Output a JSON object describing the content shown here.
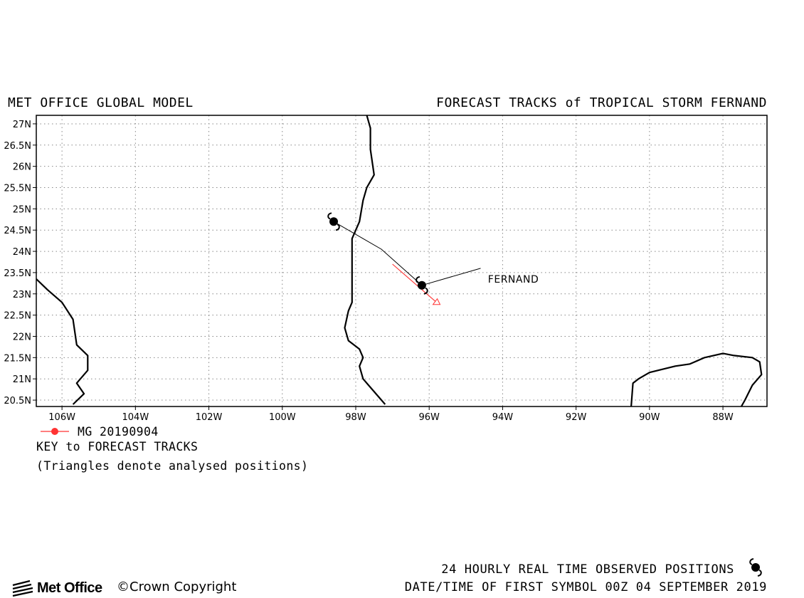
{
  "header": {
    "model_title": "MET OFFICE GLOBAL MODEL",
    "forecast_title": "FORECAST TRACKS of TROPICAL STORM FERNAND"
  },
  "map": {
    "lon_range": [
      -106.7,
      -86.8
    ],
    "lat_range": [
      20.35,
      27.2
    ],
    "lon_ticks": [
      -106,
      -104,
      -102,
      -100,
      -98,
      -96,
      -94,
      -92,
      -90,
      -88
    ],
    "lon_tick_labels": [
      "106W",
      "104W",
      "102W",
      "100W",
      "98W",
      "96W",
      "94W",
      "92W",
      "90W",
      "88W"
    ],
    "lat_ticks": [
      20.5,
      21,
      21.5,
      22,
      22.5,
      23,
      23.5,
      24,
      24.5,
      25,
      25.5,
      26,
      26.5,
      27
    ],
    "lat_tick_labels": [
      "20.5N",
      "21N",
      "21.5N",
      "22N",
      "22.5N",
      "23N",
      "23.5N",
      "24N",
      "24.5N",
      "25N",
      "25.5N",
      "26N",
      "26.5N",
      "27N"
    ],
    "grid": "dotted",
    "storm_name": "FERNAND",
    "storm_label_position": [
      -94.4,
      23.35
    ],
    "observed_positions": [
      {
        "lon": -96.2,
        "lat": 23.2
      },
      {
        "lon": -98.6,
        "lat": 24.7
      }
    ],
    "observed_track": [
      [
        -96.2,
        23.2
      ],
      [
        -97.3,
        24.05
      ],
      [
        -97.8,
        24.3
      ],
      [
        -98.6,
        24.7
      ]
    ],
    "label_leader": [
      [
        -96.2,
        23.2
      ],
      [
        -94.6,
        23.6
      ]
    ],
    "forecast_track": {
      "name": "MG 20190904",
      "color": "#ff3333",
      "points": [
        [
          -97.0,
          23.7
        ],
        [
          -95.8,
          22.8
        ]
      ],
      "analysed_triangle": {
        "lon": -95.8,
        "lat": 22.8
      }
    },
    "coastlines": [
      [
        [
          -97.7,
          27.2
        ],
        [
          -97.6,
          26.9
        ],
        [
          -97.6,
          26.4
        ],
        [
          -97.5,
          25.8
        ],
        [
          -97.7,
          25.5
        ],
        [
          -97.8,
          25.2
        ],
        [
          -97.9,
          24.7
        ],
        [
          -98.1,
          24.3
        ],
        [
          -98.1,
          23.5
        ],
        [
          -98.1,
          22.8
        ],
        [
          -98.2,
          22.6
        ],
        [
          -98.3,
          22.2
        ],
        [
          -98.2,
          21.9
        ],
        [
          -97.9,
          21.7
        ],
        [
          -97.8,
          21.5
        ],
        [
          -97.9,
          21.3
        ],
        [
          -97.8,
          21.0
        ],
        [
          -97.6,
          20.8
        ],
        [
          -97.2,
          20.4
        ]
      ],
      [
        [
          -106.7,
          23.35
        ],
        [
          -106.4,
          23.1
        ],
        [
          -106.0,
          22.8
        ],
        [
          -105.7,
          22.4
        ],
        [
          -105.6,
          21.8
        ],
        [
          -105.3,
          21.55
        ],
        [
          -105.3,
          21.2
        ],
        [
          -105.6,
          20.9
        ],
        [
          -105.4,
          20.65
        ],
        [
          -105.7,
          20.4
        ]
      ],
      [
        [
          -90.5,
          20.35
        ],
        [
          -90.45,
          20.9
        ],
        [
          -90.3,
          21.0
        ],
        [
          -90.0,
          21.15
        ],
        [
          -89.3,
          21.3
        ],
        [
          -88.9,
          21.35
        ],
        [
          -88.5,
          21.5
        ],
        [
          -88.0,
          21.6
        ],
        [
          -87.7,
          21.55
        ],
        [
          -87.2,
          21.5
        ],
        [
          -87.0,
          21.4
        ],
        [
          -86.95,
          21.1
        ],
        [
          -87.2,
          20.85
        ],
        [
          -87.4,
          20.5
        ],
        [
          -87.5,
          20.35
        ]
      ]
    ]
  },
  "key": {
    "entry_label": "MG 20190904",
    "title": "KEY to FORECAST TRACKS",
    "note": "(Triangles denote analysed positions)"
  },
  "footer": {
    "observed_positions_label": "24 HOURLY REAL TIME OBSERVED POSITIONS",
    "date_time_label": "DATE/TIME OF FIRST SYMBOL 00Z 04 SEPTEMBER 2019",
    "logo_text": "Met Office",
    "copyright": "©Crown Copyright"
  }
}
